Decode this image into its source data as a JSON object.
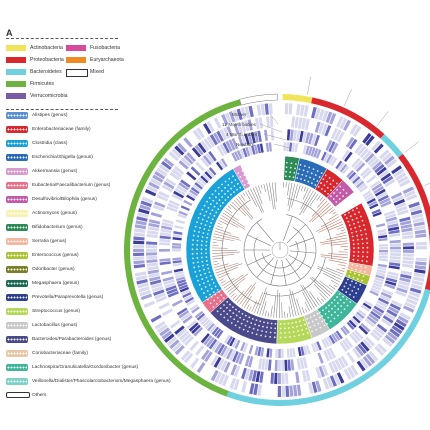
{
  "panel": {
    "label": "A"
  },
  "phylum_legend": [
    {
      "label": "Actinobacteria",
      "color": "#f2e45a"
    },
    {
      "label": "Proteobacteria",
      "color": "#d9272e"
    },
    {
      "label": "Bacteroidetes",
      "color": "#6fd0e0"
    },
    {
      "label": "Firmicutes",
      "color": "#6db33f"
    },
    {
      "label": "Verrucomicrobia",
      "color": "#7b5aa6"
    },
    {
      "label": "Fusobacteria",
      "color": "#d64a9b"
    },
    {
      "label": "Euryarchaeota",
      "color": "#f08a24"
    },
    {
      "label": "Mixed",
      "color": "#ffffff"
    }
  ],
  "genus_legend": [
    {
      "label": "Alistipes (genus)",
      "color": "#5a8fd0"
    },
    {
      "label": "Enterobacteriaceae (family)",
      "color": "#d9272e"
    },
    {
      "label": "Clostridia (class)",
      "color": "#1aa1d8"
    },
    {
      "label": "Escherichia/Shigella (genus)",
      "color": "#2b6cb8"
    },
    {
      "label": "Akkermansia (genus)",
      "color": "#d99ad0"
    },
    {
      "label": "Eubacteria/Faecalibacterium (genus)",
      "color": "#e8708a"
    },
    {
      "label": "Desulfovibrio/Bilophila (genus)",
      "color": "#c25aa8"
    },
    {
      "label": "Actinomyces (genus)",
      "color": "#f7f2b0"
    },
    {
      "label": "Bifidobacterium (genus)",
      "color": "#2e8b57"
    },
    {
      "label": "Serratia (genus)",
      "color": "#f4b6a0"
    },
    {
      "label": "Enterococcus (genus)",
      "color": "#a8c432"
    },
    {
      "label": "Odoribacter (genus)",
      "color": "#7a7f2a"
    },
    {
      "label": "Megasphaera (genus)",
      "color": "#1d6b50"
    },
    {
      "label": "Prevotella/Paraprevotella (genus)",
      "color": "#2d3f8e"
    },
    {
      "label": "Streptococcus (genus)",
      "color": "#b6d85a"
    },
    {
      "label": "Lactobacillus (genus)",
      "color": "#c8c8c8"
    },
    {
      "label": "Bacteroides/Parabacteroides (genus)",
      "color": "#4a4a8a"
    },
    {
      "label": "Coriobacteriaceae (family)",
      "color": "#e6c7a8"
    },
    {
      "label": "Lachnospira/Granulicatella/Gordonibacter (genus)",
      "color": "#3fb59a"
    },
    {
      "label": "Veillonella/Dialister/Phascolarctobacterium/Megasphaera (genus)",
      "color": "#7ed3c8"
    },
    {
      "label": "Others",
      "color": "#ffffff"
    }
  ],
  "rings": {
    "mother": "Mother",
    "month12": "12 Month babies",
    "month4": "4 Month babies",
    "newborn": "Newborn"
  },
  "phylum_outer_ring": [
    {
      "name": "Actinobacteria",
      "start": 1,
      "end": 12,
      "color": "#f2e45a"
    },
    {
      "name": "Proteobacteria",
      "start": 12,
      "end": 42,
      "color": "#d9272e"
    },
    {
      "name": "Bacteroidetes",
      "start": 42,
      "end": 52,
      "color": "#6fd0e0"
    },
    {
      "name": "Proteobacteria",
      "start": 52,
      "end": 105,
      "color": "#d9272e"
    },
    {
      "name": "Bacteroidetes",
      "start": 105,
      "end": 200,
      "color": "#6fd0e0"
    },
    {
      "name": "Firmicutes",
      "start": 200,
      "end": 345,
      "color": "#6db33f"
    },
    {
      "name": "Mixed",
      "start": 345,
      "end": 359,
      "color": "#ffffff"
    }
  ],
  "genus_ring": [
    {
      "genus": "Bifidobacterium",
      "start": 3,
      "end": 12,
      "color": "#2e8b57"
    },
    {
      "genus": "Escherichia/Shigella",
      "start": 12,
      "end": 30,
      "color": "#2b6cb8"
    },
    {
      "genus": "Enterobacteriaceae",
      "start": 30,
      "end": 42,
      "color": "#d9272e"
    },
    {
      "genus": "Desulfovibrio/Bilophila",
      "start": 42,
      "end": 52,
      "color": "#c25aa8"
    },
    {
      "genus": "Enterobacteriaceae",
      "start": 60,
      "end": 100,
      "color": "#d9272e"
    },
    {
      "genus": "Serratia",
      "start": 100,
      "end": 106,
      "color": "#f4b6a0"
    },
    {
      "genus": "Enterococcus",
      "start": 106,
      "end": 112,
      "color": "#a8c432"
    },
    {
      "genus": "Prevotella/Paraprevotella",
      "start": 112,
      "end": 125,
      "color": "#2d3f8e"
    },
    {
      "genus": "Lachnospira/Granulicatella/Gordonibacter",
      "start": 125,
      "end": 148,
      "color": "#3fb59a"
    },
    {
      "genus": "Lactobacillus",
      "start": 148,
      "end": 160,
      "color": "#c8c8c8"
    },
    {
      "genus": "Streptococcus",
      "start": 160,
      "end": 182,
      "color": "#b6d85a"
    },
    {
      "genus": "Bacteroides/Parabacteroides",
      "start": 182,
      "end": 228,
      "color": "#4a4a8a"
    },
    {
      "genus": "Eubacteria/Faecalibacterium",
      "start": 228,
      "end": 236,
      "color": "#e8708a"
    },
    {
      "genus": "Clostridia",
      "start": 236,
      "end": 330,
      "color": "#1aa1d8"
    },
    {
      "genus": "Akkermansia",
      "start": 330,
      "end": 335,
      "color": "#d99ad0"
    }
  ]
}
